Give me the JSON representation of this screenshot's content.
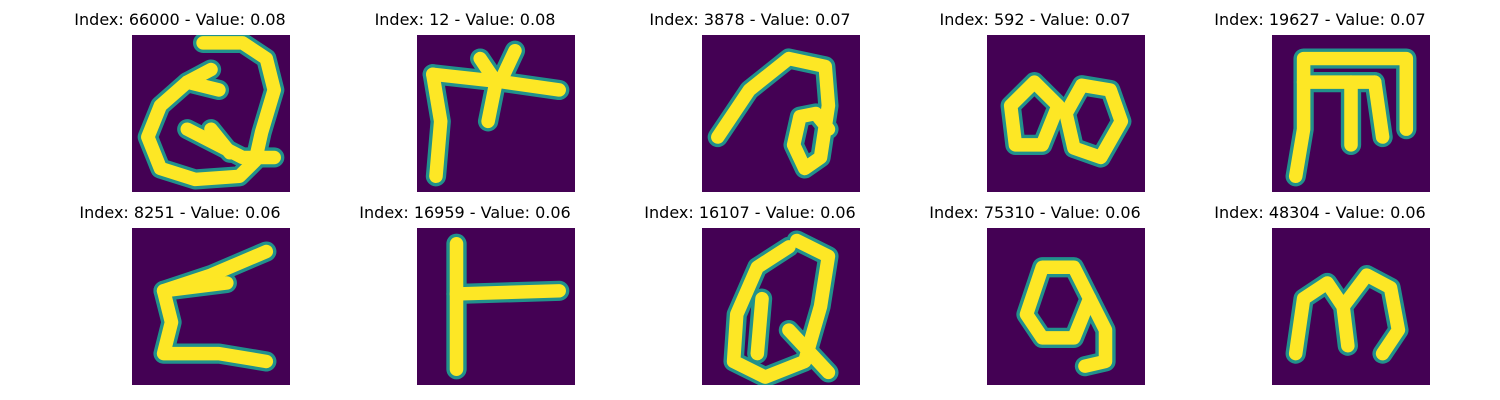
{
  "figure": {
    "colors": {
      "background": "#440154",
      "mid": "#21918c",
      "high": "#fde725"
    },
    "panels": [
      {
        "title": "Index: 66000 - Value: 0.08",
        "glyph": "Q-like loop with tail",
        "strokes": [
          [
            [
              0.45,
              0.05
            ],
            [
              0.7,
              0.05
            ],
            [
              0.85,
              0.15
            ],
            [
              0.9,
              0.35
            ],
            [
              0.82,
              0.62
            ],
            [
              0.78,
              0.8
            ],
            [
              0.68,
              0.9
            ],
            [
              0.4,
              0.92
            ],
            [
              0.18,
              0.85
            ],
            [
              0.1,
              0.65
            ],
            [
              0.18,
              0.45
            ],
            [
              0.35,
              0.3
            ],
            [
              0.5,
              0.22
            ]
          ],
          [
            [
              0.35,
              0.3
            ],
            [
              0.55,
              0.35
            ]
          ],
          [
            [
              0.35,
              0.6
            ],
            [
              0.7,
              0.78
            ],
            [
              0.9,
              0.78
            ]
          ],
          [
            [
              0.5,
              0.6
            ],
            [
              0.62,
              0.75
            ]
          ]
        ]
      },
      {
        "title": "Index: 12 - Value: 0.08",
        "glyph": "forked bar shape",
        "strokes": [
          [
            [
              0.1,
              0.25
            ],
            [
              0.15,
              0.55
            ],
            [
              0.12,
              0.9
            ]
          ],
          [
            [
              0.1,
              0.25
            ],
            [
              0.55,
              0.3
            ],
            [
              0.9,
              0.35
            ]
          ],
          [
            [
              0.4,
              0.15
            ],
            [
              0.5,
              0.3
            ],
            [
              0.45,
              0.55
            ]
          ],
          [
            [
              0.55,
              0.25
            ],
            [
              0.62,
              0.1
            ]
          ]
        ]
      },
      {
        "title": "Index: 3878 - Value: 0.07",
        "glyph": "swirl loop",
        "strokes": [
          [
            [
              0.1,
              0.65
            ],
            [
              0.3,
              0.35
            ],
            [
              0.55,
              0.15
            ],
            [
              0.78,
              0.2
            ],
            [
              0.8,
              0.45
            ],
            [
              0.75,
              0.78
            ],
            [
              0.65,
              0.85
            ],
            [
              0.58,
              0.7
            ],
            [
              0.62,
              0.52
            ],
            [
              0.72,
              0.5
            ],
            [
              0.8,
              0.6
            ]
          ]
        ]
      },
      {
        "title": "Index: 592 - Value: 0.07",
        "glyph": "double blob",
        "strokes": [
          [
            [
              0.15,
              0.45
            ],
            [
              0.3,
              0.3
            ],
            [
              0.45,
              0.45
            ],
            [
              0.35,
              0.7
            ],
            [
              0.18,
              0.7
            ],
            [
              0.15,
              0.45
            ]
          ],
          [
            [
              0.5,
              0.5
            ],
            [
              0.6,
              0.32
            ],
            [
              0.78,
              0.35
            ],
            [
              0.85,
              0.55
            ],
            [
              0.72,
              0.78
            ],
            [
              0.55,
              0.72
            ],
            [
              0.5,
              0.5
            ]
          ]
        ]
      },
      {
        "title": "Index: 19627 - Value: 0.07",
        "glyph": "M-like frame",
        "strokes": [
          [
            [
              0.15,
              0.9
            ],
            [
              0.2,
              0.6
            ],
            [
              0.2,
              0.15
            ],
            [
              0.85,
              0.15
            ],
            [
              0.85,
              0.6
            ]
          ],
          [
            [
              0.2,
              0.3
            ],
            [
              0.65,
              0.3
            ]
          ],
          [
            [
              0.5,
              0.3
            ],
            [
              0.5,
              0.7
            ]
          ],
          [
            [
              0.65,
              0.3
            ],
            [
              0.7,
              0.65
            ]
          ]
        ]
      },
      {
        "title": "Index: 8251 - Value: 0.06",
        "glyph": "zigzag stroke",
        "strokes": [
          [
            [
              0.85,
              0.15
            ],
            [
              0.5,
              0.3
            ],
            [
              0.2,
              0.4
            ],
            [
              0.25,
              0.6
            ],
            [
              0.2,
              0.8
            ],
            [
              0.55,
              0.8
            ],
            [
              0.85,
              0.85
            ]
          ],
          [
            [
              0.2,
              0.4
            ],
            [
              0.6,
              0.35
            ]
          ]
        ]
      },
      {
        "title": "Index: 16959 - Value: 0.06",
        "glyph": "T rotated",
        "strokes": [
          [
            [
              0.25,
              0.1
            ],
            [
              0.25,
              0.9
            ]
          ],
          [
            [
              0.25,
              0.42
            ],
            [
              0.9,
              0.4
            ]
          ]
        ]
      },
      {
        "title": "Index: 16107 - Value: 0.06",
        "glyph": "Q-like oval",
        "strokes": [
          [
            [
              0.6,
              0.08
            ],
            [
              0.8,
              0.18
            ],
            [
              0.75,
              0.5
            ],
            [
              0.65,
              0.85
            ],
            [
              0.4,
              0.95
            ],
            [
              0.2,
              0.85
            ],
            [
              0.22,
              0.55
            ],
            [
              0.35,
              0.25
            ],
            [
              0.55,
              0.12
            ]
          ],
          [
            [
              0.38,
              0.45
            ],
            [
              0.35,
              0.8
            ]
          ],
          [
            [
              0.55,
              0.65
            ],
            [
              0.8,
              0.92
            ]
          ]
        ]
      },
      {
        "title": "Index: 75310 - Value: 0.06",
        "glyph": "blob with tail",
        "strokes": [
          [
            [
              0.25,
              0.55
            ],
            [
              0.35,
              0.25
            ],
            [
              0.55,
              0.25
            ],
            [
              0.65,
              0.45
            ],
            [
              0.55,
              0.7
            ],
            [
              0.35,
              0.7
            ],
            [
              0.25,
              0.55
            ]
          ],
          [
            [
              0.65,
              0.45
            ],
            [
              0.75,
              0.65
            ],
            [
              0.75,
              0.85
            ],
            [
              0.62,
              0.88
            ]
          ]
        ]
      },
      {
        "title": "Index: 48304 - Value: 0.06",
        "glyph": "m-like shape",
        "strokes": [
          [
            [
              0.15,
              0.8
            ],
            [
              0.2,
              0.45
            ],
            [
              0.35,
              0.35
            ],
            [
              0.45,
              0.5
            ],
            [
              0.48,
              0.75
            ]
          ],
          [
            [
              0.45,
              0.5
            ],
            [
              0.6,
              0.3
            ],
            [
              0.75,
              0.38
            ],
            [
              0.8,
              0.65
            ],
            [
              0.7,
              0.8
            ]
          ]
        ]
      }
    ]
  }
}
